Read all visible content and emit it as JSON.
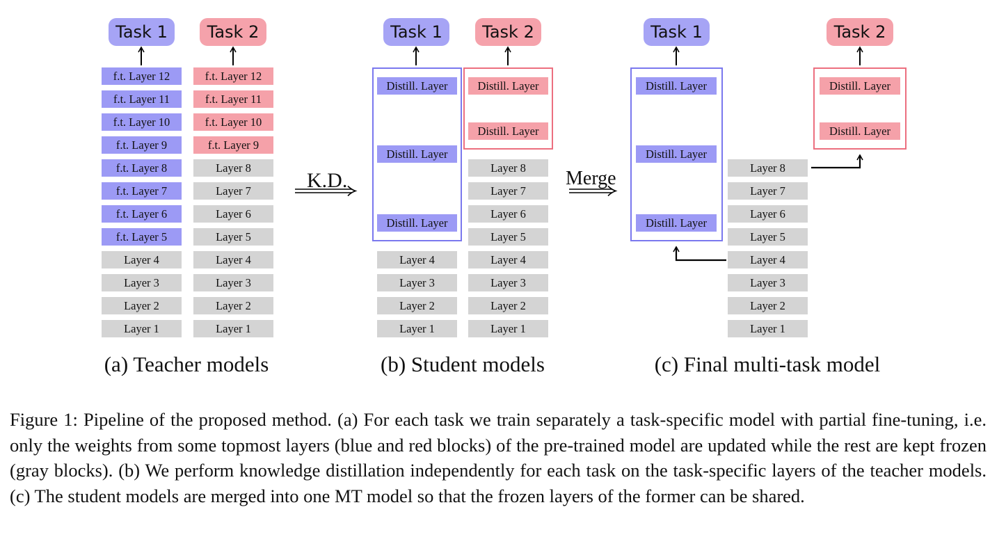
{
  "tasks": {
    "t1": "Task 1",
    "t2": "Task 2"
  },
  "teacher": {
    "blue": [
      "f.t. Layer 12",
      "f.t. Layer 11",
      "f.t. Layer 10",
      "f.t. Layer 9",
      "f.t. Layer 8",
      "f.t. Layer 7",
      "f.t. Layer 6",
      "f.t. Layer 5",
      "Layer 4",
      "Layer 3",
      "Layer 2",
      "Layer 1"
    ],
    "red": [
      "f.t. Layer 12",
      "f.t. Layer 11",
      "f.t. Layer 10",
      "f.t. Layer 9",
      "Layer 8",
      "Layer 7",
      "Layer 6",
      "Layer 5",
      "Layer 4",
      "Layer 3",
      "Layer 2",
      "Layer 1"
    ]
  },
  "student": {
    "distill": "Distill. Layer",
    "blue_frozen": [
      "Layer 4",
      "Layer 3",
      "Layer 2",
      "Layer 1"
    ],
    "red_frozen": [
      "Layer 8",
      "Layer 7",
      "Layer 6",
      "Layer 5",
      "Layer 4",
      "Layer 3",
      "Layer 2",
      "Layer 1"
    ]
  },
  "final": {
    "distill": "Distill. Layer",
    "shared": [
      "Layer 8",
      "Layer 7",
      "Layer 6",
      "Layer 5",
      "Layer 4",
      "Layer 3",
      "Layer 2",
      "Layer 1"
    ]
  },
  "arrows": {
    "kd": "K.D.",
    "merge": "Merge"
  },
  "subcaptions": {
    "a": "(a) Teacher models",
    "b": "(b) Student models",
    "c": "(c) Final multi-task model"
  },
  "caption": "Figure 1: Pipeline of the proposed method. (a) For each task we train separately a task-specific model with partial fine-tuning, i.e. only the weights from some topmost layers (blue and red blocks) of the pre-trained model are updated while the rest are kept frozen (gray blocks). (b) We perform knowledge distillation independently for each task on the task-specific layers of the teacher models. (c) The student models are merged into one MT model so that the frozen layers of the former can be shared.",
  "colors": {
    "blue": "#9c9af5",
    "red": "#f5a1a9",
    "gray": "#d4d4d4",
    "blue_border": "#7a78ee",
    "red_border": "#ec6f7f"
  }
}
